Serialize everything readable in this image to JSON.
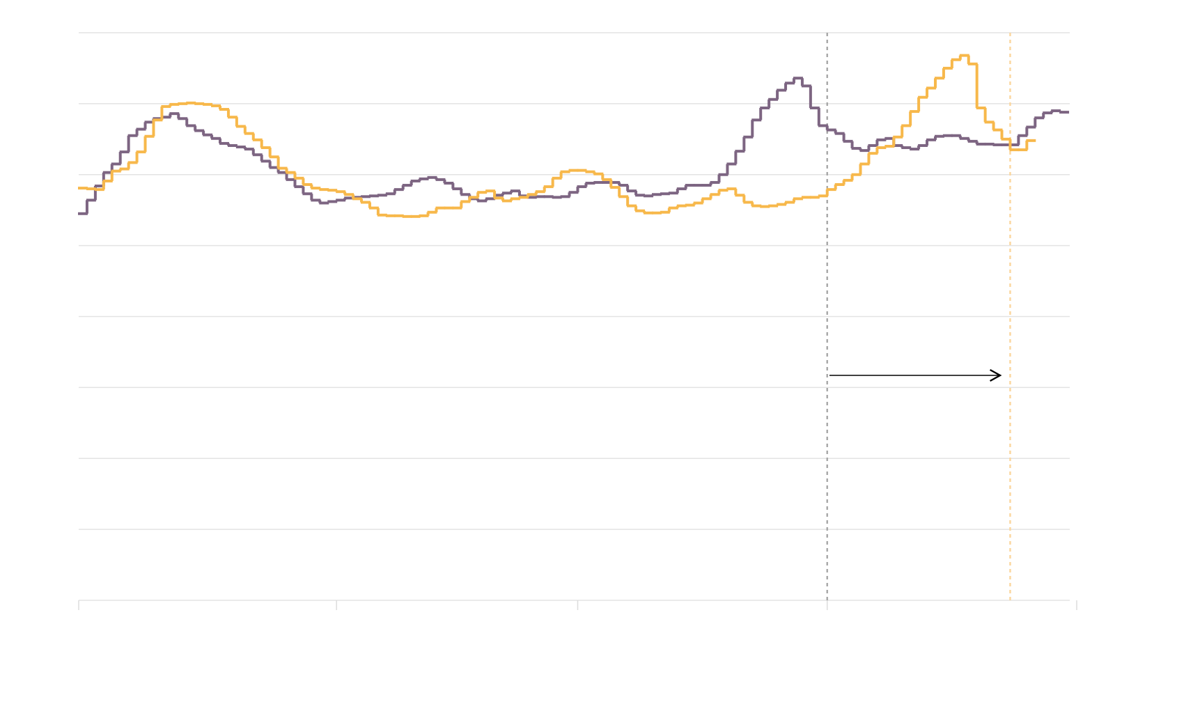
{
  "chart_data": {
    "type": "step",
    "x": [
      0,
      1,
      2,
      3,
      4,
      5,
      6,
      7,
      8,
      9,
      10,
      11,
      12,
      13,
      14,
      15,
      16,
      17,
      18,
      19,
      20,
      21,
      22,
      23,
      24,
      25,
      26,
      27,
      28,
      29,
      30,
      31,
      32,
      33,
      34,
      35,
      36,
      37,
      38,
      39,
      40,
      41,
      42,
      43,
      44,
      45,
      46,
      47,
      48,
      49,
      50,
      51,
      52,
      53,
      54,
      55,
      56,
      57,
      58,
      59,
      60,
      61,
      62,
      63,
      64,
      65,
      66,
      67,
      68,
      69,
      70,
      71,
      72,
      73,
      74,
      75,
      76,
      77,
      78,
      79,
      80,
      81,
      82,
      83,
      84,
      85,
      86,
      87,
      88,
      89,
      90,
      91,
      92,
      93,
      94,
      95,
      96,
      97,
      98,
      99,
      100,
      101,
      102,
      103,
      104,
      105,
      106,
      107,
      108,
      109,
      110,
      111,
      112,
      113,
      114,
      115,
      116,
      117,
      118
    ],
    "series": [
      {
        "color": "#7d6582",
        "values": [
          5.45,
          5.64,
          5.84,
          6.03,
          6.15,
          6.32,
          6.55,
          6.64,
          6.74,
          6.79,
          6.81,
          6.86,
          6.79,
          6.69,
          6.62,
          6.56,
          6.51,
          6.44,
          6.41,
          6.39,
          6.36,
          6.28,
          6.19,
          6.1,
          6.03,
          5.93,
          5.83,
          5.73,
          5.64,
          5.6,
          5.62,
          5.64,
          5.67,
          5.68,
          5.69,
          5.7,
          5.71,
          5.73,
          5.79,
          5.85,
          5.91,
          5.94,
          5.96,
          5.93,
          5.88,
          5.8,
          5.72,
          5.66,
          5.63,
          5.66,
          5.71,
          5.74,
          5.77,
          5.7,
          5.68,
          5.69,
          5.69,
          5.68,
          5.69,
          5.75,
          5.83,
          5.88,
          5.89,
          5.89,
          5.89,
          5.85,
          5.77,
          5.71,
          5.7,
          5.72,
          5.73,
          5.74,
          5.8,
          5.85,
          5.85,
          5.85,
          5.89,
          6.0,
          6.15,
          6.33,
          6.53,
          6.77,
          6.94,
          7.06,
          7.19,
          7.29,
          7.36,
          7.25,
          6.94,
          6.69,
          6.63,
          6.58,
          6.47,
          6.37,
          6.34,
          6.41,
          6.49,
          6.51,
          6.41,
          6.38,
          6.36,
          6.41,
          6.49,
          6.54,
          6.55,
          6.55,
          6.51,
          6.47,
          6.43,
          6.43,
          6.42,
          6.42,
          6.42,
          6.55,
          6.67,
          6.8,
          6.87,
          6.9,
          6.88
        ]
      },
      {
        "color": "#f7b84b",
        "values": [
          5.81,
          5.8,
          5.79,
          5.91,
          6.05,
          6.08,
          6.17,
          6.32,
          6.54,
          6.77,
          6.96,
          6.99,
          7.0,
          7.01,
          7.0,
          6.99,
          6.97,
          6.92,
          6.81,
          6.68,
          6.58,
          6.49,
          6.38,
          6.25,
          6.09,
          6.03,
          5.95,
          5.86,
          5.81,
          5.79,
          5.78,
          5.76,
          5.72,
          5.66,
          5.61,
          5.53,
          5.43,
          5.42,
          5.42,
          5.41,
          5.41,
          5.42,
          5.47,
          5.53,
          5.53,
          5.53,
          5.62,
          5.68,
          5.75,
          5.77,
          5.67,
          5.63,
          5.66,
          5.68,
          5.72,
          5.76,
          5.83,
          5.95,
          6.04,
          6.06,
          6.06,
          6.04,
          6.01,
          5.93,
          5.82,
          5.69,
          5.56,
          5.49,
          5.46,
          5.46,
          5.47,
          5.53,
          5.56,
          5.57,
          5.6,
          5.66,
          5.72,
          5.78,
          5.8,
          5.71,
          5.61,
          5.56,
          5.55,
          5.56,
          5.58,
          5.61,
          5.66,
          5.68,
          5.68,
          5.7,
          5.79,
          5.86,
          5.92,
          6.0,
          6.15,
          6.3,
          6.38,
          6.4,
          6.53,
          6.69,
          6.89,
          7.09,
          7.22,
          7.36,
          7.5,
          7.62,
          7.68,
          7.56,
          6.94,
          6.74,
          6.63,
          6.5,
          6.35,
          6.35,
          6.48,
          null,
          null,
          null,
          null
        ]
      }
    ],
    "vlines": [
      {
        "x": 90,
        "color": "#aaaaaa"
      },
      {
        "x": 112,
        "color": "#fbd7a0"
      }
    ],
    "xlim": [
      0,
      120
    ],
    "xticks": [
      0,
      31,
      60,
      90,
      120
    ],
    "ylim": [
      0,
      8
    ],
    "yticks": [
      0,
      1,
      2,
      3,
      4,
      5,
      6,
      7,
      8
    ],
    "grid": true
  }
}
